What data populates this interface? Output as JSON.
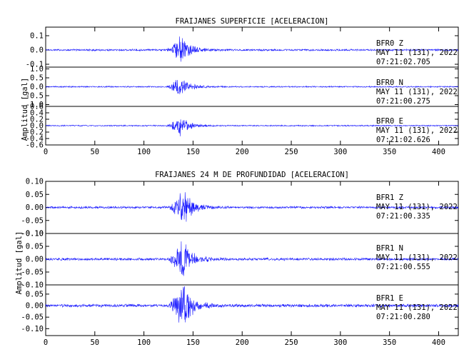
{
  "chart_data": [
    {
      "type": "line",
      "title": "FRAIJANES SUPERFICIE [ACELERACION]",
      "ylabel": "Amplitud [gal]",
      "xlabel": "",
      "xlim": [
        0,
        420
      ],
      "x_ticks": [
        "0",
        "50",
        "100",
        "150",
        "200",
        "250",
        "300",
        "350",
        "400"
      ],
      "series_color": "#1a1aff",
      "event_onset": 122,
      "event_peak": 137,
      "channels": [
        {
          "station": "BFR0  Z",
          "date": "MAY 11 (131), 2022",
          "time": "07:21:02.705",
          "ylim": [
            -0.12,
            0.16
          ],
          "y_ticks": [
            "0.1",
            "0.0",
            "-0.1"
          ],
          "peak_amplitude": 0.12
        },
        {
          "station": "BFR0  N",
          "date": "MAY 11 (131), 2022",
          "time": "07:21:00.275",
          "ylim": [
            -1.1,
            1.1
          ],
          "y_ticks": [
            "1.0",
            "0.5",
            "0.0",
            "-0.5",
            "-1.0"
          ],
          "peak_amplitude": 0.65
        },
        {
          "station": "BFR0  E",
          "date": "MAY 11 (131), 2022",
          "time": "07:21:02.626",
          "ylim": [
            -0.6,
            0.6
          ],
          "y_ticks": [
            "0.6",
            "0.4",
            "0.2",
            "0.0",
            "-0.2",
            "-0.4",
            "-0.6"
          ],
          "peak_amplitude": 0.35
        }
      ]
    },
    {
      "type": "line",
      "title": "FRAIJANES 24 M DE PROFUNDIDAD [ACELERACION]",
      "ylabel": "Amplitud [gal]",
      "xlabel": "",
      "xlim": [
        0,
        420
      ],
      "x_ticks": [
        "0",
        "50",
        "100",
        "150",
        "200",
        "250",
        "300",
        "350",
        "400"
      ],
      "series_color": "#1a1aff",
      "event_onset": 124,
      "event_peak": 140,
      "channels": [
        {
          "station": "BFR1  Z",
          "date": "MAY 11 (131), 2022",
          "time": "07:21:00.335",
          "ylim": [
            -0.1,
            0.1
          ],
          "y_ticks": [
            "0.10",
            "0.05",
            "0.00",
            "-0.05",
            "-0.10"
          ],
          "peak_amplitude": 0.08
        },
        {
          "station": "BFR1  N",
          "date": "MAY 11 (131), 2022",
          "time": "07:21:00.555",
          "ylim": [
            -0.1,
            0.1
          ],
          "y_ticks": [
            "0.10",
            "0.05",
            "0.00",
            "-0.05",
            "-0.10"
          ],
          "peak_amplitude": 0.09
        },
        {
          "station": "BFR1  E",
          "date": "MAY 11 (131), 2022",
          "time": "07:21:00.280",
          "ylim": [
            -0.13,
            0.09
          ],
          "y_ticks": [
            "0.05",
            "0.00",
            "-0.05",
            "-0.10"
          ],
          "peak_amplitude": 0.12
        }
      ]
    }
  ]
}
